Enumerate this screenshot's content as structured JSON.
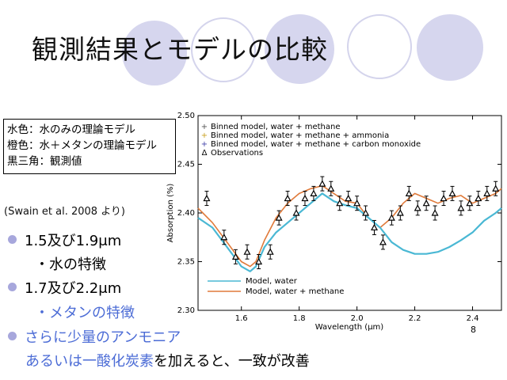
{
  "slide": {
    "title": "観測結果とモデルの比較",
    "page_number": "8"
  },
  "legend_box": {
    "lines": [
      "水色：水のみの理論モデル",
      "橙色：水＋メタンの理論モデル",
      "黒三角：観測値"
    ]
  },
  "citation": "(Swain et al. 2008 より)",
  "bullets": [
    {
      "text": "1.5及び1.9μm",
      "sub": "・水の特徴"
    },
    {
      "text": "1.7及び2.2μm",
      "sub": "・メタンの特徴"
    },
    {
      "text": "さらに少量のアンモニア",
      "sub_blue": "あるいは一酸化炭素",
      "sub_black": "を加えると、一致が改善"
    }
  ],
  "colors": {
    "water_model": "#4ab8d4",
    "methane_model": "#e07a3a",
    "circle_fill": "#d6d6ee",
    "bullet": "#a7a7dc",
    "highlight_text": "#4c6cd6"
  },
  "chart_data": {
    "type": "line",
    "xlabel": "Wavelength (μm)",
    "ylabel": "Absorption (%)",
    "xlim": [
      1.45,
      2.5
    ],
    "ylim": [
      2.3,
      2.5
    ],
    "x_ticks": [
      "1.6",
      "1.8",
      "2.0",
      "2.2",
      "2.4"
    ],
    "x_tick_values": [
      1.6,
      1.8,
      2.0,
      2.2,
      2.4
    ],
    "y_ticks": [
      "2.30",
      "2.35",
      "2.40",
      "2.45",
      "2.50"
    ],
    "y_tick_values": [
      2.3,
      2.35,
      2.4,
      2.45,
      2.5
    ],
    "top_legend": [
      {
        "marker": "+",
        "label": "Binned model, water + methane",
        "color": "#555"
      },
      {
        "marker": "+",
        "label": "Binned model, water + methane + ammonia",
        "color": "#c9a020"
      },
      {
        "marker": "+",
        "label": "Binned model, water + methane + carbon monoxide",
        "color": "#4444aa"
      },
      {
        "marker": "Δ",
        "label": "Observations",
        "color": "#000"
      }
    ],
    "bottom_legend": [
      {
        "label": "Model, water",
        "color": "#4ab8d4"
      },
      {
        "label": "Model, water + methane",
        "color": "#e07a3a"
      }
    ],
    "series": [
      {
        "name": "Model, water",
        "x": [
          1.45,
          1.5,
          1.55,
          1.6,
          1.63,
          1.65,
          1.68,
          1.72,
          1.76,
          1.8,
          1.84,
          1.88,
          1.92,
          1.96,
          2.0,
          2.04,
          2.08,
          2.12,
          2.16,
          2.2,
          2.24,
          2.28,
          2.32,
          2.36,
          2.4,
          2.44,
          2.48,
          2.5
        ],
        "y": [
          2.395,
          2.385,
          2.365,
          2.345,
          2.34,
          2.345,
          2.365,
          2.38,
          2.39,
          2.4,
          2.41,
          2.42,
          2.412,
          2.408,
          2.405,
          2.395,
          2.385,
          2.37,
          2.362,
          2.358,
          2.358,
          2.36,
          2.365,
          2.372,
          2.38,
          2.392,
          2.4,
          2.405
        ]
      },
      {
        "name": "Model, water + methane",
        "x": [
          1.45,
          1.5,
          1.55,
          1.6,
          1.63,
          1.65,
          1.68,
          1.72,
          1.76,
          1.8,
          1.84,
          1.88,
          1.92,
          1.96,
          2.0,
          2.04,
          2.08,
          2.12,
          2.16,
          2.2,
          2.24,
          2.28,
          2.32,
          2.36,
          2.4,
          2.44,
          2.48,
          2.5
        ],
        "y": [
          2.405,
          2.39,
          2.37,
          2.35,
          2.345,
          2.35,
          2.372,
          2.395,
          2.41,
          2.42,
          2.425,
          2.428,
          2.42,
          2.412,
          2.41,
          2.395,
          2.385,
          2.395,
          2.41,
          2.42,
          2.415,
          2.41,
          2.415,
          2.418,
          2.41,
          2.415,
          2.42,
          2.425
        ]
      }
    ],
    "observations": {
      "x": [
        1.48,
        1.54,
        1.58,
        1.62,
        1.66,
        1.7,
        1.73,
        1.76,
        1.79,
        1.82,
        1.85,
        1.88,
        1.91,
        1.94,
        1.97,
        2.0,
        2.03,
        2.06,
        2.09,
        2.12,
        2.15,
        2.18,
        2.21,
        2.24,
        2.27,
        2.3,
        2.33,
        2.36,
        2.39,
        2.42,
        2.45,
        2.48
      ],
      "y": [
        2.415,
        2.375,
        2.355,
        2.36,
        2.35,
        2.36,
        2.395,
        2.415,
        2.4,
        2.415,
        2.42,
        2.43,
        2.425,
        2.41,
        2.415,
        2.41,
        2.4,
        2.385,
        2.37,
        2.395,
        2.4,
        2.42,
        2.405,
        2.41,
        2.4,
        2.415,
        2.42,
        2.405,
        2.41,
        2.415,
        2.42,
        2.425
      ]
    }
  }
}
